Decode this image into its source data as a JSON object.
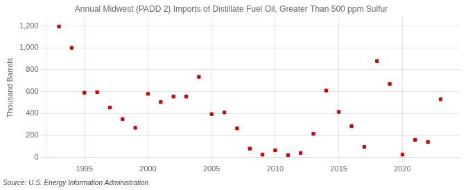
{
  "chart_data": {
    "type": "scatter",
    "title": "Annual Midwest (PADD 2) Imports of Distillate Fuel Oil, Greater Than 500 ppm Sulfur",
    "y_label": "Thousand Barrels",
    "annotations": [
      "Source: U.S. Energy Information Administration"
    ],
    "x": [
      1993,
      1994,
      1995,
      1996,
      1997,
      1998,
      1999,
      2000,
      2001,
      2002,
      2003,
      2004,
      2005,
      2006,
      2007,
      2008,
      2009,
      2010,
      2011,
      2012,
      2013,
      2014,
      2015,
      2016,
      2017,
      2018,
      2019,
      2020,
      2021,
      2022,
      2023
    ],
    "values": [
      1195,
      1000,
      590,
      595,
      455,
      350,
      270,
      580,
      505,
      555,
      555,
      735,
      395,
      410,
      265,
      80,
      25,
      65,
      20,
      40,
      215,
      610,
      415,
      285,
      95,
      880,
      670,
      25,
      160,
      140,
      530
    ],
    "color": "#cc0000",
    "marker": "square",
    "xlim": [
      1992,
      2024.5
    ],
    "xticks": [
      1995,
      2000,
      2005,
      2010,
      2015,
      2020
    ],
    "ylim": [
      0,
      1270
    ],
    "yticks": [
      0,
      200,
      400,
      600,
      800,
      {
        "value": 1000,
        "label": "1,000"
      },
      {
        "value": 1200,
        "label": "1,200"
      }
    ],
    "grid": true
  }
}
